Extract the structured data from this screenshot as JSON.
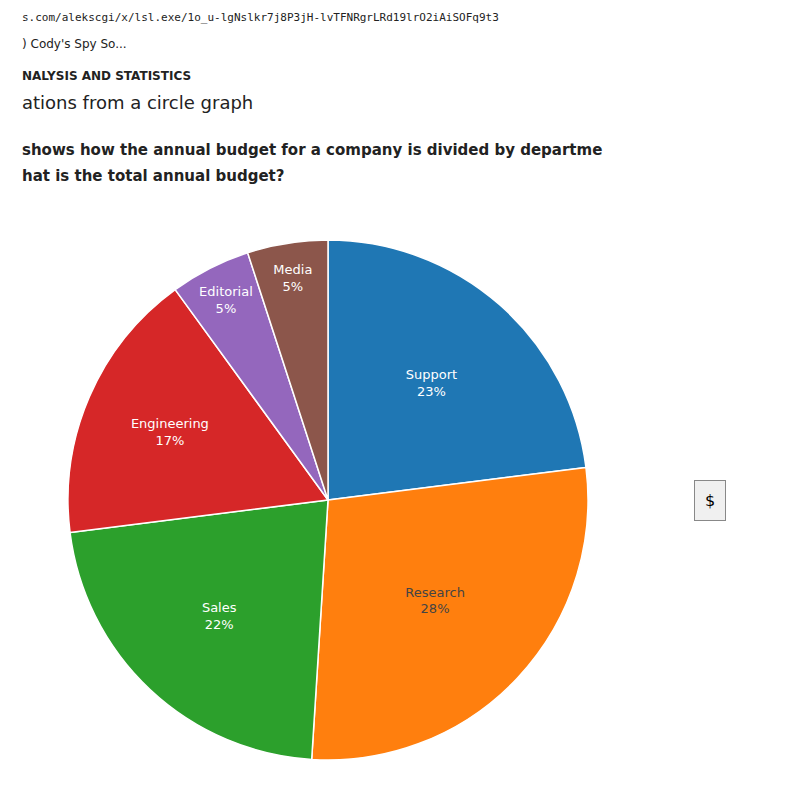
{
  "chart_data": {
    "type": "pie",
    "categories": [
      "Support",
      "Research",
      "Sales",
      "Engineering",
      "Editorial",
      "Media"
    ],
    "values": [
      23,
      28,
      22,
      17,
      5,
      5
    ],
    "value_labels": [
      "23%",
      "28%",
      "22%",
      "17%",
      "5%",
      "5%"
    ],
    "data_labels": true,
    "annotations": [
      "s.com/alekscgi/x/lsl.exe/1o_u-lgNslkr7j8P3jH-lvTFNRgrLRd19lrO2iAiSOFq9t3",
      ") Cody's Spy So...",
      "NALYSIS AND STATISTICS",
      "ations from a circle graph",
      "shows how the annual budget for a company is divided by departme",
      "hat is the total annual budget?",
      "$"
    ]
  }
}
